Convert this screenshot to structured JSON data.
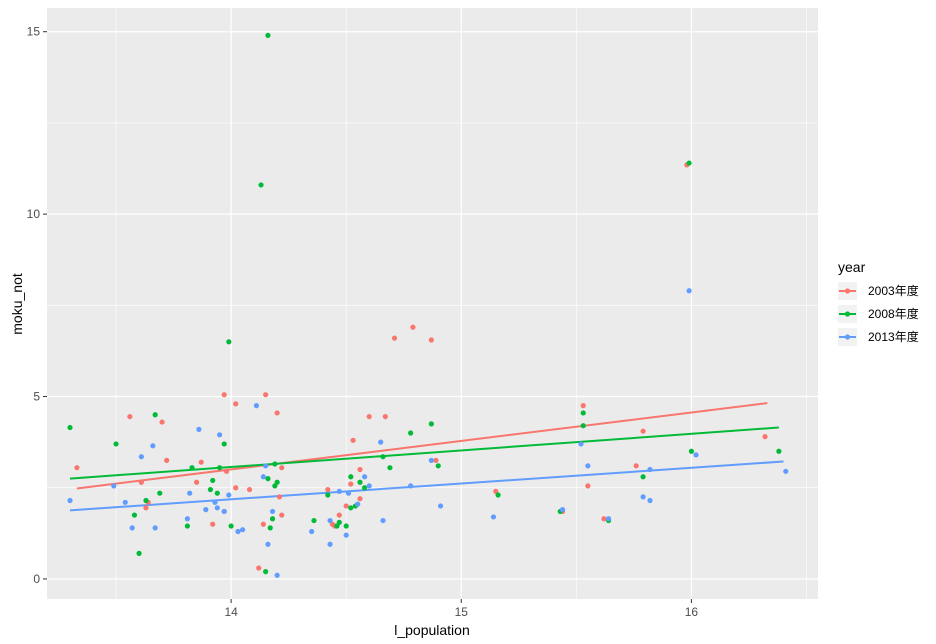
{
  "chart_data": {
    "type": "scatter",
    "xlabel": "l_population",
    "ylabel": "moku_not",
    "xlim": [
      13.2,
      16.55
    ],
    "ylim": [
      -0.55,
      15.65
    ],
    "x_ticks": [
      14,
      15,
      16
    ],
    "y_ticks": [
      0,
      5,
      10,
      15
    ],
    "x_tick_labels": [
      "14",
      "15",
      "16"
    ],
    "y_tick_labels": [
      "0",
      "5",
      "10",
      "15"
    ],
    "grid": true,
    "legend": {
      "title": "year",
      "position": "right"
    },
    "series": [
      {
        "name": "2003年度",
        "color": "#F8766D",
        "trend": [
          [
            13.33,
            2.48
          ],
          [
            16.33,
            4.82
          ]
        ],
        "points": [
          [
            13.33,
            3.05
          ],
          [
            13.56,
            4.45
          ],
          [
            13.61,
            2.65
          ],
          [
            13.63,
            1.95
          ],
          [
            13.64,
            2.1
          ],
          [
            13.7,
            4.3
          ],
          [
            13.72,
            3.25
          ],
          [
            13.85,
            2.65
          ],
          [
            13.87,
            3.2
          ],
          [
            13.92,
            1.5
          ],
          [
            13.97,
            5.05
          ],
          [
            13.97,
            1.85
          ],
          [
            13.98,
            2.95
          ],
          [
            14.02,
            4.8
          ],
          [
            14.02,
            2.5
          ],
          [
            14.08,
            2.45
          ],
          [
            14.12,
            0.3
          ],
          [
            14.14,
            1.5
          ],
          [
            14.15,
            5.05
          ],
          [
            14.2,
            4.55
          ],
          [
            14.21,
            2.25
          ],
          [
            14.22,
            3.05
          ],
          [
            14.22,
            1.75
          ],
          [
            14.42,
            2.45
          ],
          [
            14.44,
            1.5
          ],
          [
            14.45,
            1.45
          ],
          [
            14.47,
            1.75
          ],
          [
            14.5,
            2.0
          ],
          [
            14.52,
            2.6
          ],
          [
            14.53,
            3.8
          ],
          [
            14.56,
            3.0
          ],
          [
            14.56,
            2.2
          ],
          [
            14.6,
            4.45
          ],
          [
            14.67,
            4.45
          ],
          [
            14.71,
            6.6
          ],
          [
            14.79,
            6.9
          ],
          [
            14.87,
            6.55
          ],
          [
            14.89,
            3.25
          ],
          [
            15.15,
            2.4
          ],
          [
            15.44,
            1.85
          ],
          [
            15.53,
            4.75
          ],
          [
            15.55,
            2.55
          ],
          [
            15.62,
            1.65
          ],
          [
            15.76,
            3.1
          ],
          [
            15.79,
            4.05
          ],
          [
            15.98,
            11.35
          ],
          [
            16.32,
            3.9
          ]
        ]
      },
      {
        "name": "2008年度",
        "color": "#00BA38",
        "trend": [
          [
            13.3,
            2.75
          ],
          [
            16.38,
            4.15
          ]
        ],
        "points": [
          [
            13.3,
            4.15
          ],
          [
            13.5,
            3.7
          ],
          [
            13.58,
            1.75
          ],
          [
            13.6,
            0.7
          ],
          [
            13.63,
            2.15
          ],
          [
            13.67,
            4.5
          ],
          [
            13.69,
            2.35
          ],
          [
            13.81,
            1.45
          ],
          [
            13.83,
            3.05
          ],
          [
            13.91,
            2.45
          ],
          [
            13.92,
            2.7
          ],
          [
            13.94,
            2.35
          ],
          [
            13.95,
            3.05
          ],
          [
            13.97,
            3.7
          ],
          [
            13.99,
            6.5
          ],
          [
            14.0,
            1.45
          ],
          [
            14.13,
            10.8
          ],
          [
            14.15,
            0.2
          ],
          [
            14.16,
            14.9
          ],
          [
            14.16,
            2.75
          ],
          [
            14.17,
            1.4
          ],
          [
            14.18,
            1.65
          ],
          [
            14.19,
            2.55
          ],
          [
            14.19,
            3.15
          ],
          [
            14.2,
            2.65
          ],
          [
            14.36,
            1.6
          ],
          [
            14.42,
            2.3
          ],
          [
            14.46,
            1.45
          ],
          [
            14.47,
            1.55
          ],
          [
            14.5,
            1.45
          ],
          [
            14.52,
            2.8
          ],
          [
            14.52,
            1.95
          ],
          [
            14.54,
            2.0
          ],
          [
            14.56,
            2.65
          ],
          [
            14.58,
            2.5
          ],
          [
            14.66,
            3.35
          ],
          [
            14.69,
            3.05
          ],
          [
            14.78,
            4.0
          ],
          [
            14.87,
            4.25
          ],
          [
            14.9,
            3.1
          ],
          [
            15.16,
            2.3
          ],
          [
            15.43,
            1.85
          ],
          [
            15.53,
            4.2
          ],
          [
            15.53,
            4.55
          ],
          [
            15.64,
            1.6
          ],
          [
            15.79,
            2.8
          ],
          [
            15.99,
            11.4
          ],
          [
            16.0,
            3.5
          ],
          [
            16.38,
            3.5
          ]
        ]
      },
      {
        "name": "2013年度",
        "color": "#619CFF",
        "trend": [
          [
            13.3,
            1.88
          ],
          [
            16.4,
            3.22
          ]
        ],
        "points": [
          [
            13.3,
            2.15
          ],
          [
            13.49,
            2.55
          ],
          [
            13.54,
            2.1
          ],
          [
            13.57,
            1.4
          ],
          [
            13.61,
            3.35
          ],
          [
            13.66,
            3.65
          ],
          [
            13.67,
            1.4
          ],
          [
            13.81,
            1.65
          ],
          [
            13.82,
            2.35
          ],
          [
            13.86,
            4.1
          ],
          [
            13.89,
            1.9
          ],
          [
            13.93,
            2.1
          ],
          [
            13.94,
            1.95
          ],
          [
            13.95,
            3.95
          ],
          [
            13.97,
            1.85
          ],
          [
            13.99,
            2.3
          ],
          [
            14.03,
            1.3
          ],
          [
            14.05,
            1.35
          ],
          [
            14.11,
            4.75
          ],
          [
            14.14,
            2.8
          ],
          [
            14.15,
            3.1
          ],
          [
            14.16,
            0.95
          ],
          [
            14.18,
            1.85
          ],
          [
            14.2,
            0.1
          ],
          [
            14.35,
            1.3
          ],
          [
            14.43,
            0.95
          ],
          [
            14.43,
            1.6
          ],
          [
            14.47,
            2.4
          ],
          [
            14.5,
            1.2
          ],
          [
            14.51,
            2.35
          ],
          [
            14.55,
            2.05
          ],
          [
            14.58,
            2.8
          ],
          [
            14.6,
            2.55
          ],
          [
            14.65,
            3.75
          ],
          [
            14.66,
            1.6
          ],
          [
            14.78,
            2.55
          ],
          [
            14.87,
            3.25
          ],
          [
            14.91,
            2.0
          ],
          [
            15.14,
            1.7
          ],
          [
            15.44,
            1.9
          ],
          [
            15.52,
            3.7
          ],
          [
            15.55,
            3.1
          ],
          [
            15.64,
            1.65
          ],
          [
            15.79,
            2.25
          ],
          [
            15.82,
            3.0
          ],
          [
            15.82,
            2.15
          ],
          [
            15.99,
            7.9
          ],
          [
            16.02,
            3.4
          ],
          [
            16.41,
            2.95
          ]
        ]
      }
    ]
  }
}
